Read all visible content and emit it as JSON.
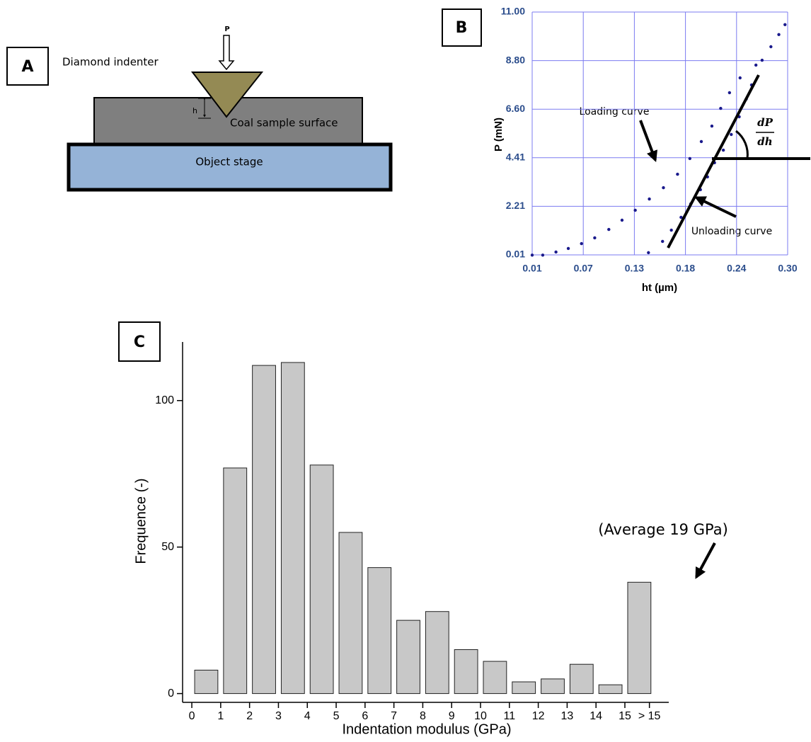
{
  "panel_a": {
    "label": "A",
    "load_label": "P",
    "indenter_label": "Diamond indenter",
    "depth_label": "h",
    "surface_label": "Coal sample surface",
    "stage_label": "Object stage"
  },
  "chart_data": [
    {
      "type": "scatter",
      "panel_label": "B",
      "x_label": "ht (µm)",
      "y_label": "P (mN)",
      "annotations": [
        "Loading curve",
        "Unloading curve",
        "dP",
        "dh"
      ],
      "color": "#1a1a8c",
      "x": [
        0.01,
        0.022,
        0.037,
        0.051,
        0.066,
        0.081,
        0.097,
        0.112,
        0.127,
        0.143,
        0.159,
        0.175,
        0.189,
        0.202,
        0.214,
        0.224,
        0.234,
        0.246,
        0.264,
        0.271,
        0.281,
        0.29,
        0.297,
        0.142,
        0.158,
        0.168,
        0.179,
        0.19,
        0.201,
        0.209,
        0.217,
        0.227,
        0.236,
        0.245,
        0.253,
        0.259
      ],
      "values": [
        0.0,
        0.0,
        0.14,
        0.3,
        0.52,
        0.78,
        1.16,
        1.58,
        2.03,
        2.54,
        3.05,
        3.66,
        4.37,
        5.14,
        5.84,
        6.64,
        7.35,
        8.02,
        8.6,
        8.82,
        9.43,
        9.98,
        10.43,
        0.11,
        0.62,
        1.13,
        1.71,
        2.32,
        2.96,
        3.54,
        4.18,
        4.75,
        5.46,
        6.26,
        7.06,
        7.7
      ],
      "xlim": [
        0.01,
        0.3
      ],
      "ylim": [
        0.01,
        11
      ],
      "xticks": [
        0.01,
        {
          "value": 0.068,
          "label": "0.07"
        },
        {
          "value": 0.126,
          "label": "0.13"
        },
        {
          "value": 0.184,
          "label": "0.18"
        },
        {
          "value": 0.242,
          "label": "0.24"
        },
        {
          "value": 0.3,
          "label": "0.30"
        }
      ],
      "yticks": [
        0.01,
        {
          "value": 2.208,
          "label": "2.21"
        },
        {
          "value": 4.406,
          "label": "4.41"
        },
        {
          "value": 6.604,
          "label": "6.60"
        },
        {
          "value": 8.802,
          "label": "8.80"
        },
        {
          "value": 11,
          "label": "11.00"
        }
      ],
      "grid": true
    },
    {
      "type": "histogram",
      "panel_label": "C",
      "x_label": "Indentation modulus (GPa)",
      "y_label": "Frequence (-)",
      "annotation": "(Average 19 GPa)",
      "color": "#c8c8c8",
      "bins": [
        0,
        1,
        2,
        3,
        4,
        5,
        6,
        7,
        8,
        9,
        10,
        11,
        12,
        13,
        14,
        15,
        16
      ],
      "values": [
        8,
        77,
        112,
        113,
        78,
        55,
        43,
        25,
        28,
        15,
        11,
        4,
        5,
        10,
        3,
        38
      ],
      "xlim": [
        -0.32,
        16.52
      ],
      "ylim": [
        -3,
        120
      ],
      "xticks": [
        0,
        1,
        2,
        3,
        4,
        5,
        6,
        7,
        8,
        9,
        10,
        11,
        12,
        13,
        14,
        15,
        {
          "value": 15.85,
          "label": "> 15"
        }
      ],
      "yticks": [
        0,
        50,
        100
      ]
    }
  ]
}
